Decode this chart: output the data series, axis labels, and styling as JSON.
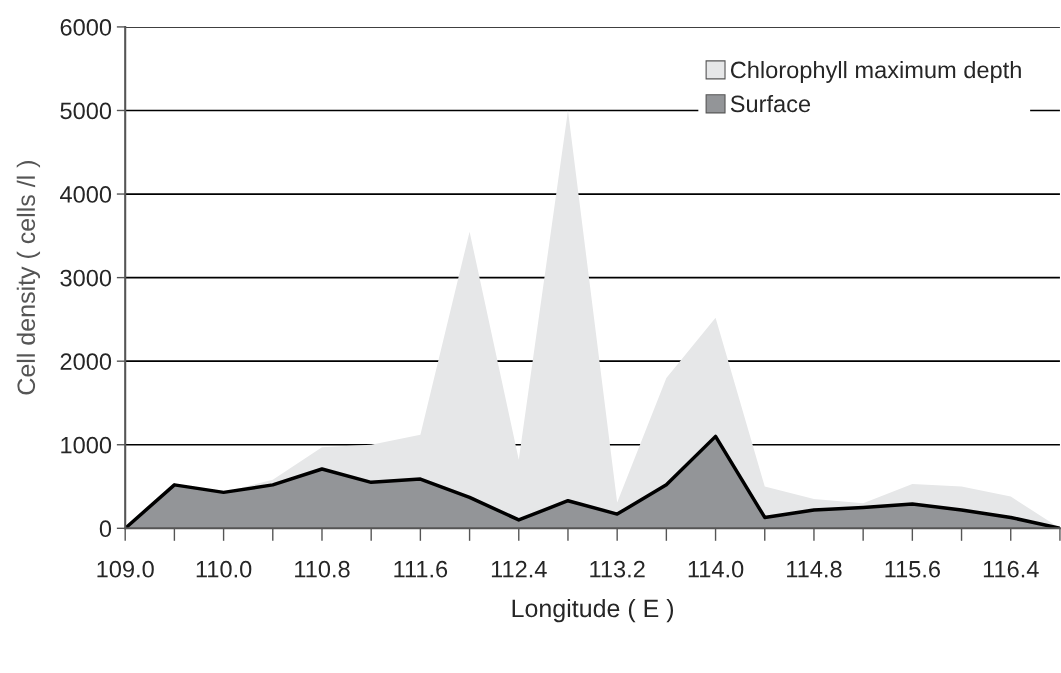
{
  "chart_data": {
    "type": "area",
    "xlabel": "Longitude ( E )",
    "ylabel": "Cell density ( cells /l )",
    "categories": [
      "109.0",
      null,
      "110.0",
      null,
      "110.8",
      null,
      "111.6",
      null,
      "112.4",
      null,
      "113.2",
      null,
      "114.0",
      null,
      "114.8",
      null,
      "115.6",
      null,
      "116.4",
      null
    ],
    "series": [
      {
        "name": "Chlorophyll maximum depth",
        "color": "#e6e7e8",
        "values": [
          0,
          520,
          430,
          580,
          970,
          1000,
          1120,
          3550,
          820,
          5000,
          310,
          1800,
          2520,
          500,
          350,
          300,
          530,
          500,
          380,
          0
        ]
      },
      {
        "name": "Surface",
        "color": "#939598",
        "line_style": "solid",
        "values": [
          0,
          520,
          430,
          520,
          710,
          550,
          590,
          370,
          100,
          330,
          170,
          520,
          1100,
          130,
          220,
          250,
          290,
          220,
          130,
          0
        ]
      }
    ],
    "ylim": [
      0,
      6000
    ],
    "yticks": [
      0,
      1000,
      2000,
      3000,
      4000,
      5000,
      6000
    ],
    "grid": "y",
    "legend": "top right"
  }
}
